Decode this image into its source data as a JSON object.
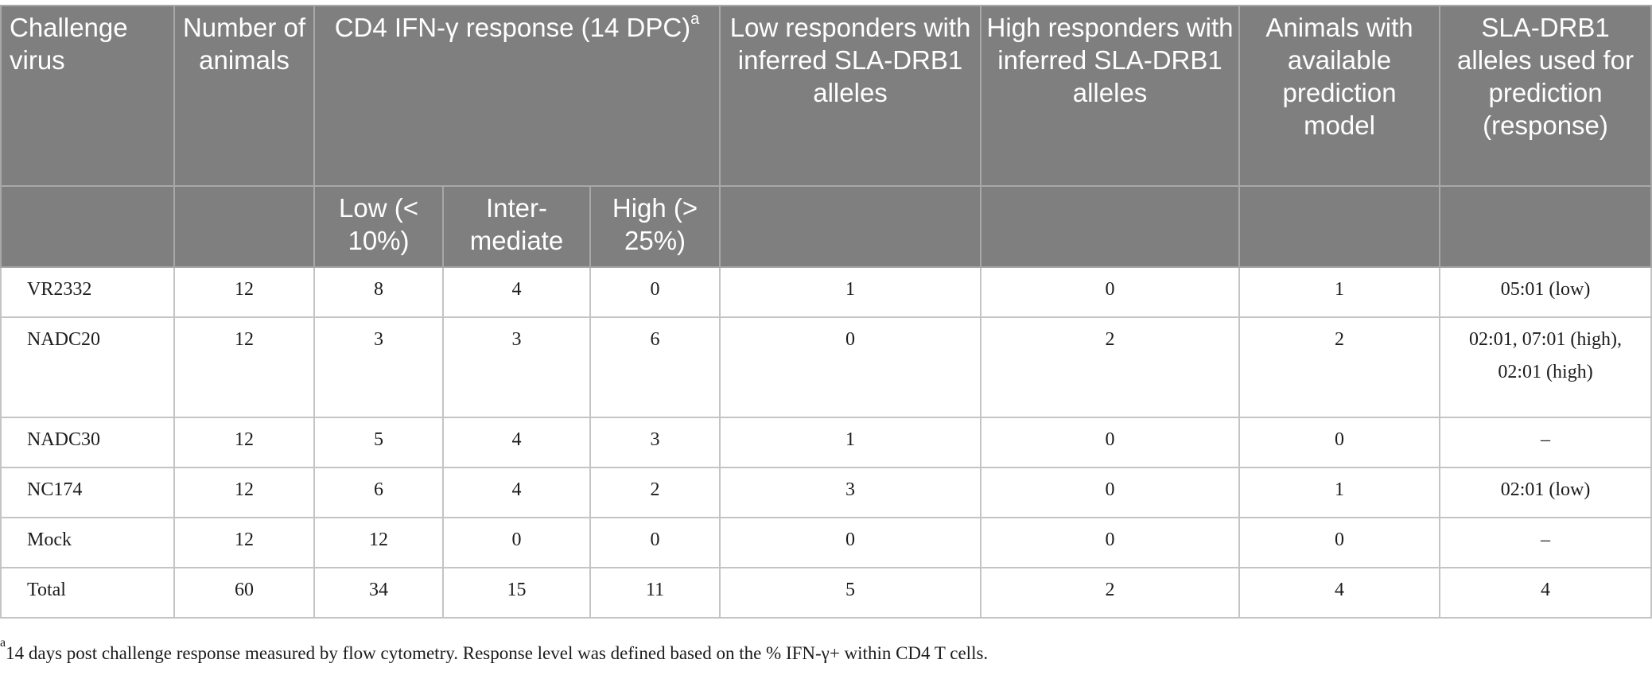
{
  "header": {
    "challenge_virus": "Challenge virus",
    "number_of_animals": "Number of animals",
    "cd4_response_main": "CD4 IFN-γ response (14 DPC)",
    "cd4_response_marker": "a",
    "low_responders": "Low responders with inferred SLA-DRB1 alleles",
    "high_responders": "High responders with inferred SLA-DRB1 alleles",
    "prediction_model": "Animals with available prediction model",
    "alleles_used": "SLA-DRB1 alleles used for prediction (response)",
    "sub_low": "Low (< 10%)",
    "sub_intermediate": "Inter-mediate",
    "sub_high": "High (> 25%)"
  },
  "rows": [
    {
      "virus": "VR2332",
      "animals": "12",
      "low": "8",
      "intermediate": "4",
      "high": "0",
      "low_resp": "1",
      "high_resp": "0",
      "model": "1",
      "alleles": "05:01 (low)"
    },
    {
      "virus": "NADC20",
      "animals": "12",
      "low": "3",
      "intermediate": "3",
      "high": "6",
      "low_resp": "0",
      "high_resp": "2",
      "model": "2",
      "alleles": "02:01, 07:01 (high), 02:01 (high)"
    },
    {
      "virus": "NADC30",
      "animals": "12",
      "low": "5",
      "intermediate": "4",
      "high": "3",
      "low_resp": "1",
      "high_resp": "0",
      "model": "0",
      "alleles": "–"
    },
    {
      "virus": "NC174",
      "animals": "12",
      "low": "6",
      "intermediate": "4",
      "high": "2",
      "low_resp": "3",
      "high_resp": "0",
      "model": "1",
      "alleles": "02:01 (low)"
    },
    {
      "virus": "Mock",
      "animals": "12",
      "low": "12",
      "intermediate": "0",
      "high": "0",
      "low_resp": "0",
      "high_resp": "0",
      "model": "0",
      "alleles": "–"
    },
    {
      "virus": "Total",
      "animals": "60",
      "low": "34",
      "intermediate": "15",
      "high": "11",
      "low_resp": "5",
      "high_resp": "2",
      "model": "4",
      "alleles": "4"
    }
  ],
  "footnote": {
    "marker": "a",
    "text": "14 days post challenge response measured by flow cytometry. Response level was defined based on the % IFN-γ+ within CD4 T cells."
  }
}
